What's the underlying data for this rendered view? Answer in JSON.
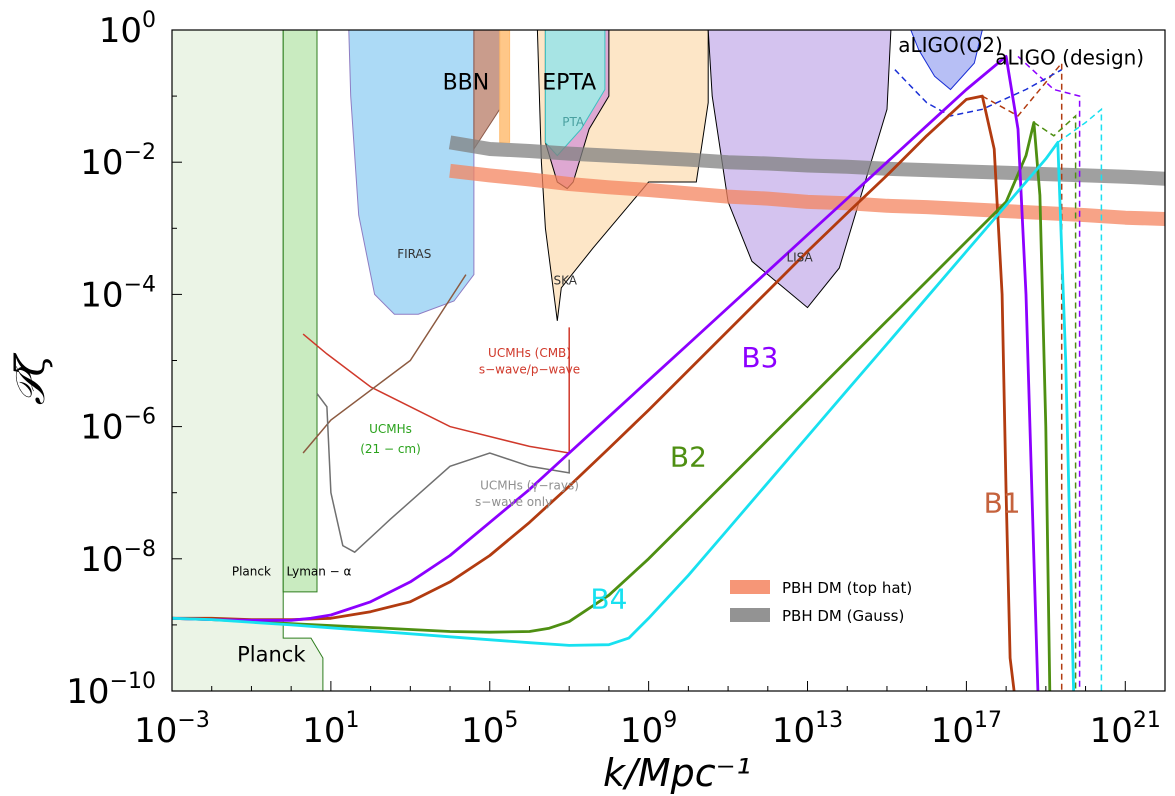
{
  "chart_data": {
    "type": "line",
    "title": "",
    "xlabel": "k/Mpc⁻¹",
    "ylabel": "𝒫ζ",
    "xscale": "log",
    "yscale": "log",
    "xlim_exp": [
      -3,
      22
    ],
    "ylim_exp": [
      -10,
      0
    ],
    "x_ticks": [
      {
        "base": "10",
        "exp": "−3",
        "value": 0.001
      },
      {
        "base": "10",
        "exp": "1",
        "value": 10
      },
      {
        "base": "10",
        "exp": "5",
        "value": 100000
      },
      {
        "base": "10",
        "exp": "9",
        "value": 1000000000
      },
      {
        "base": "10",
        "exp": "13",
        "value": 10000000000000.0
      },
      {
        "base": "10",
        "exp": "17",
        "value": 1e+17
      },
      {
        "base": "10",
        "exp": "21",
        "value": 1e+21
      }
    ],
    "y_ticks": [
      {
        "base": "10",
        "exp": "0",
        "value": 1
      },
      {
        "base": "10",
        "exp": "−2",
        "value": 0.01
      },
      {
        "base": "10",
        "exp": "−4",
        "value": 0.0001
      },
      {
        "base": "10",
        "exp": "−6",
        "value": 1e-06
      },
      {
        "base": "10",
        "exp": "−8",
        "value": 1e-08
      },
      {
        "base": "10",
        "exp": "−10",
        "value": 1e-10
      }
    ],
    "grid": false,
    "legend": {
      "position": "lower-right",
      "entries": [
        {
          "name": "PBH DM (top hat)",
          "color": "#f4845f"
        },
        {
          "name": "PBH DM (Gauss)",
          "color": "#808080"
        }
      ]
    },
    "regions": [
      {
        "name": "Planck",
        "color": "#e7f2e2",
        "edge": "#2e7d1e",
        "points": [
          [
            -3,
            -10
          ],
          [
            -3,
            0
          ],
          [
            -0.2,
            0
          ],
          [
            -0.2,
            -8.5
          ],
          [
            -0.2,
            -9.2
          ],
          [
            0.5,
            -9.2
          ],
          [
            0.8,
            -9.5
          ],
          [
            0.8,
            -10
          ]
        ]
      },
      {
        "name": "Lyman − α",
        "color": "#bfe8b5",
        "edge": "#2e7d1e",
        "points": [
          [
            -0.2,
            -8.5
          ],
          [
            -0.2,
            0
          ],
          [
            0.65,
            0
          ],
          [
            0.65,
            -8.5
          ]
        ]
      },
      {
        "name": "FIRAS",
        "color": "#9ed3f5",
        "edge": "#8e7cc3",
        "points": [
          [
            1.45,
            0
          ],
          [
            4.6,
            0
          ],
          [
            4.6,
            -3.7
          ],
          [
            4.1,
            -4.1
          ],
          [
            3.2,
            -4.3
          ],
          [
            2.6,
            -4.3
          ],
          [
            2.1,
            -4.0
          ],
          [
            1.7,
            -2.8
          ],
          [
            1.5,
            -1.0
          ]
        ]
      },
      {
        "name": "BBN",
        "color": "#c08b78",
        "edge": "#8b5a4a",
        "points": [
          [
            4.6,
            0
          ],
          [
            5.25,
            0
          ],
          [
            5.25,
            -1.2
          ],
          [
            4.6,
            -1.8
          ]
        ]
      },
      {
        "name": "BBN-orange",
        "color": "#ffbd73",
        "edge": "#ffbd73",
        "points": [
          [
            5.25,
            0
          ],
          [
            5.5,
            0
          ],
          [
            5.5,
            -1.7
          ],
          [
            5.25,
            -1.7
          ]
        ]
      },
      {
        "name": "SKA",
        "color": "#fde2bd",
        "edge": "#000000",
        "points": [
          [
            6.2,
            0
          ],
          [
            10.5,
            0
          ],
          [
            10.5,
            -1.1
          ],
          [
            10.2,
            -2.3
          ],
          [
            9.0,
            -2.3
          ],
          [
            7.6,
            -3.3
          ],
          [
            6.8,
            -3.9
          ],
          [
            6.7,
            -4.4
          ],
          [
            6.4,
            -3.0
          ],
          [
            6.3,
            -2.0
          ]
        ]
      },
      {
        "name": "EPTA",
        "color": "#d89cd4",
        "edge": "#000000",
        "points": [
          [
            6.4,
            0
          ],
          [
            8.0,
            0
          ],
          [
            8.0,
            -1.0
          ],
          [
            7.5,
            -1.5
          ],
          [
            7.1,
            -2.3
          ],
          [
            6.95,
            -2.4
          ],
          [
            6.7,
            -2.3
          ],
          [
            6.4,
            -1.7
          ]
        ]
      },
      {
        "name": "PTA",
        "color": "#9eeee8",
        "edge": "#3cc0c0",
        "points": [
          [
            6.4,
            0
          ],
          [
            7.9,
            0
          ],
          [
            7.9,
            -0.9
          ],
          [
            7.3,
            -1.5
          ],
          [
            6.7,
            -1.9
          ],
          [
            6.4,
            -1.7
          ]
        ]
      },
      {
        "name": "LISA",
        "color": "#cdb8ec",
        "edge": "#000000",
        "points": [
          [
            10.5,
            0
          ],
          [
            15.1,
            0
          ],
          [
            15.0,
            -1.2
          ],
          [
            14.4,
            -2.4
          ],
          [
            13.8,
            -3.6
          ],
          [
            13.0,
            -4.2
          ],
          [
            12.4,
            -3.9
          ],
          [
            11.6,
            -3.5
          ],
          [
            11.0,
            -2.6
          ],
          [
            10.6,
            -1.0
          ]
        ]
      },
      {
        "name": "aLIGO(O2)",
        "color": "#aab4f3",
        "edge": "#1a2fd6",
        "points": [
          [
            15.6,
            0
          ],
          [
            17.4,
            0
          ],
          [
            17.2,
            -0.5
          ],
          [
            16.6,
            -0.9
          ],
          [
            16.2,
            -0.7
          ],
          [
            15.8,
            -0.3
          ]
        ]
      }
    ],
    "bands": [
      {
        "name": "PBH DM (top hat)",
        "color": "#f4845f",
        "x": [
          4.0,
          5.0,
          6.0,
          7.0,
          8.0,
          9.0,
          10.0,
          11.0,
          12.0,
          13.0,
          14.0,
          15.0,
          16.0,
          17.0,
          18.0,
          19.0,
          20.0,
          21.0,
          22.0
        ],
        "y": [
          -2.13,
          -2.2,
          -2.26,
          -2.33,
          -2.38,
          -2.42,
          -2.47,
          -2.52,
          -2.55,
          -2.6,
          -2.62,
          -2.66,
          -2.68,
          -2.71,
          -2.74,
          -2.77,
          -2.8,
          -2.84,
          -2.86
        ]
      },
      {
        "name": "PBH DM (Gauss)",
        "color": "#808080",
        "x": [
          4.0,
          5.0,
          6.0,
          7.0,
          8.0,
          9.0,
          10.0,
          11.0,
          12.0,
          13.0,
          14.0,
          15.0,
          16.0,
          17.0,
          18.0,
          19.0,
          20.0,
          21.0,
          22.0
        ],
        "y": [
          -1.7,
          -1.8,
          -1.83,
          -1.87,
          -1.9,
          -1.93,
          -1.96,
          -2.0,
          -2.02,
          -2.05,
          -2.07,
          -2.1,
          -2.12,
          -2.14,
          -2.16,
          -2.18,
          -2.2,
          -2.22,
          -2.25
        ]
      }
    ],
    "constraint_lines": [
      {
        "name": "UCMHs (CMB) s-wave/p-wave",
        "color": "#d0392b",
        "points": [
          [
            0.3,
            -4.6
          ],
          [
            0.9,
            -4.9
          ],
          [
            2.0,
            -5.4
          ],
          [
            4.0,
            -6.0
          ],
          [
            6.0,
            -6.3
          ],
          [
            7.0,
            -6.4
          ],
          [
            7.0,
            -4.5
          ]
        ]
      },
      {
        "name": "UCMHs (21-cm)",
        "color": "#8c5a40",
        "points": [
          [
            0.3,
            -6.4
          ],
          [
            1.0,
            -5.9
          ],
          [
            3.0,
            -5.0
          ],
          [
            4.4,
            -3.7
          ]
        ]
      },
      {
        "name": "UCMHs (γ-rays) s-wave only",
        "color": "#707070",
        "points": [
          [
            0.65,
            -5.5
          ],
          [
            0.9,
            -5.7
          ],
          [
            1.0,
            -7.0
          ],
          [
            1.3,
            -7.8
          ],
          [
            1.6,
            -7.9
          ],
          [
            2.5,
            -7.4
          ],
          [
            4.0,
            -6.6
          ],
          [
            5.0,
            -6.4
          ],
          [
            6.0,
            -6.6
          ],
          [
            7.0,
            -6.7
          ],
          [
            7.0,
            -6.5
          ]
        ]
      }
    ],
    "series": [
      {
        "name": "B1",
        "color": "#b23b10",
        "x": [
          -3,
          -2,
          -1,
          0,
          0.5,
          1,
          2,
          3,
          4,
          5,
          6,
          7,
          8,
          9,
          10,
          11,
          12,
          13,
          14,
          15,
          16,
          17,
          17.4,
          17.7,
          17.9,
          18.0,
          18.1,
          18.2
        ],
        "y": [
          -8.9,
          -8.9,
          -8.92,
          -8.92,
          -8.91,
          -8.9,
          -8.8,
          -8.65,
          -8.35,
          -7.95,
          -7.45,
          -6.9,
          -6.33,
          -5.75,
          -5.15,
          -4.55,
          -3.95,
          -3.35,
          -2.77,
          -2.2,
          -1.6,
          -1.05,
          -1.0,
          -1.8,
          -4.0,
          -7.0,
          -9.5,
          -10.0
        ]
      },
      {
        "name": "B2",
        "color": "#4e8f12",
        "x": [
          -3,
          -2,
          0,
          2,
          4,
          5,
          6,
          6.5,
          7,
          8,
          9,
          10,
          11,
          12,
          13,
          14,
          15,
          16,
          17,
          18,
          18.5,
          18.7,
          18.85,
          19.0,
          19.1
        ],
        "y": [
          -8.9,
          -8.92,
          -8.98,
          -9.04,
          -9.1,
          -9.11,
          -9.1,
          -9.05,
          -8.95,
          -8.55,
          -8.0,
          -7.4,
          -6.8,
          -6.2,
          -5.6,
          -5.0,
          -4.4,
          -3.8,
          -3.2,
          -2.6,
          -1.9,
          -1.4,
          -2.5,
          -6.0,
          -10.0
        ]
      },
      {
        "name": "B3",
        "color": "#8c00ff",
        "x": [
          -3,
          -2,
          -1,
          0,
          0.5,
          1,
          2,
          3,
          4,
          5,
          6,
          7,
          8,
          9,
          10,
          11,
          12,
          13,
          14,
          15,
          16,
          17,
          18,
          18.3,
          18.5,
          18.7,
          18.8
        ],
        "y": [
          -8.9,
          -8.92,
          -8.93,
          -8.93,
          -8.9,
          -8.85,
          -8.65,
          -8.35,
          -7.95,
          -7.45,
          -6.95,
          -6.4,
          -5.85,
          -5.3,
          -4.75,
          -4.2,
          -3.65,
          -3.1,
          -2.55,
          -2.0,
          -1.45,
          -0.9,
          -0.4,
          -1.5,
          -4.0,
          -8.0,
          -10.0
        ]
      },
      {
        "name": "B4",
        "color": "#18e1f0",
        "x": [
          -3,
          -2,
          0,
          2,
          4,
          6,
          7,
          8,
          8.5,
          9,
          10,
          11,
          12,
          13,
          14,
          15,
          16,
          17,
          18,
          19,
          19.3,
          19.5,
          19.7
        ],
        "y": [
          -8.9,
          -8.92,
          -9.0,
          -9.09,
          -9.18,
          -9.27,
          -9.31,
          -9.3,
          -9.2,
          -8.9,
          -8.25,
          -7.55,
          -6.85,
          -6.15,
          -5.45,
          -4.75,
          -4.05,
          -3.35,
          -2.65,
          -1.95,
          -1.7,
          -5.0,
          -10.0
        ]
      }
    ],
    "dashed_extensions": [
      {
        "name": "B1-dashed",
        "color": "#b23b10",
        "x": [
          17.4,
          18.3,
          19.4,
          19.4
        ],
        "y": [
          -1.0,
          -1.3,
          -0.5,
          -10.0
        ]
      },
      {
        "name": "B2-dashed",
        "color": "#4e8f12",
        "x": [
          18.7,
          19.2,
          19.75,
          19.75
        ],
        "y": [
          -1.4,
          -1.6,
          -1.3,
          -10.0
        ]
      },
      {
        "name": "B3-dashed",
        "color": "#8c00ff",
        "x": [
          18.3,
          19.2,
          19.85,
          19.85
        ],
        "y": [
          -0.4,
          -0.9,
          -1.0,
          -10.0
        ]
      },
      {
        "name": "B4-dashed",
        "color": "#18e1f0",
        "x": [
          19.3,
          20.0,
          20.4,
          20.4
        ],
        "y": [
          -1.7,
          -1.4,
          -1.2,
          -10.0
        ]
      },
      {
        "name": "aLIGO (design)",
        "color": "#1a2fd6",
        "x": [
          15.2,
          16.0,
          16.6,
          17.4,
          18.5,
          19.4
        ],
        "y": [
          -0.6,
          -1.1,
          -1.3,
          -1.2,
          -0.9,
          -0.6
        ]
      }
    ],
    "annotations": [
      {
        "text": "aLIGO(O2)",
        "color": "#000000",
        "size": 20,
        "at": [
          16.6,
          -0.33
        ]
      },
      {
        "text": "aLIGO (design)",
        "color": "#000000",
        "size": 20,
        "at": [
          19.6,
          -0.52
        ]
      },
      {
        "text": "BBN",
        "color": "#000000",
        "size": 22,
        "at": [
          4.4,
          -0.9
        ]
      },
      {
        "text": "EPTA",
        "color": "#000000",
        "size": 22,
        "at": [
          7.0,
          -0.9
        ]
      },
      {
        "text": "PTA",
        "color": "#4aa0a0",
        "size": 12,
        "at": [
          7.1,
          -1.45
        ]
      },
      {
        "text": "FIRAS",
        "color": "#333333",
        "size": 12,
        "at": [
          3.1,
          -3.45
        ]
      },
      {
        "text": "SKA",
        "color": "#333333",
        "size": 12,
        "at": [
          6.9,
          -3.85
        ]
      },
      {
        "text": "LISA",
        "color": "#333333",
        "size": 12,
        "at": [
          12.8,
          -3.5
        ]
      },
      {
        "text": "UCMHs (CMB)",
        "color": "#d0392b",
        "size": 12,
        "at": [
          6.0,
          -4.95
        ]
      },
      {
        "text": "s−wave/p−wave",
        "color": "#d0392b",
        "size": 12,
        "at": [
          6.0,
          -5.2
        ]
      },
      {
        "text": "UCMHs",
        "color": "#2aa21c",
        "size": 12,
        "at": [
          2.5,
          -6.1
        ]
      },
      {
        "text": "(21 − cm)",
        "color": "#2aa21c",
        "size": 12,
        "at": [
          2.5,
          -6.4
        ]
      },
      {
        "text": "UCMHs (γ−rays)",
        "color": "#909090",
        "size": 12,
        "at": [
          6.0,
          -6.95
        ]
      },
      {
        "text": "s−wave only",
        "color": "#909090",
        "size": 12,
        "at": [
          5.6,
          -7.2
        ]
      },
      {
        "text": "Planck",
        "color": "#000000",
        "size": 12,
        "at": [
          -1.0,
          -8.25
        ]
      },
      {
        "text": "Lyman − α",
        "color": "#000000",
        "size": 12,
        "at": [
          0.7,
          -8.25
        ]
      },
      {
        "text": "Planck",
        "color": "#000000",
        "size": 21,
        "at": [
          -0.5,
          -9.55
        ]
      },
      {
        "text": "B1",
        "color": "#c5623d",
        "size": 28,
        "at": [
          17.9,
          -7.3
        ]
      },
      {
        "text": "B2",
        "color": "#4e8f12",
        "size": 28,
        "at": [
          10.0,
          -6.6
        ]
      },
      {
        "text": "B3",
        "color": "#8c00ff",
        "size": 28,
        "at": [
          11.8,
          -5.1
        ]
      },
      {
        "text": "B4",
        "color": "#18e1f0",
        "size": 28,
        "at": [
          8.0,
          -8.75
        ]
      }
    ]
  }
}
